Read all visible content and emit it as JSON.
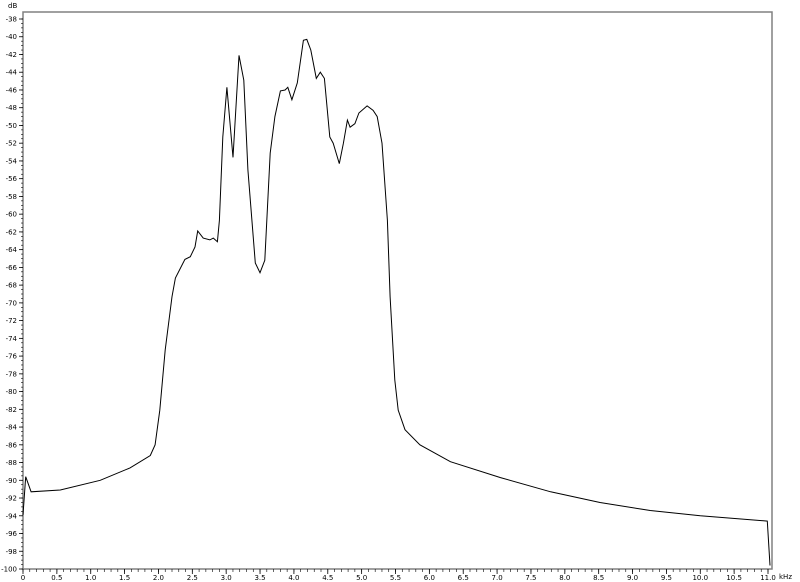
{
  "chart_data": {
    "type": "line",
    "title": "",
    "xlabel": "",
    "x_unit": "kHz",
    "ylabel": "dB",
    "xlim": [
      0,
      11
    ],
    "ylim": [
      -100,
      -38
    ],
    "grid": false,
    "x_ticks": [
      0,
      0.5,
      1.0,
      1.5,
      2.0,
      2.5,
      3.0,
      3.5,
      4.0,
      4.5,
      5.0,
      5.5,
      6.0,
      6.5,
      7.0,
      7.5,
      8.0,
      8.5,
      9.0,
      9.5,
      10.0,
      10.5,
      11.0
    ],
    "x_tick_labels": [
      "0",
      "0.5",
      "1.0",
      "1.5",
      "2.0",
      "2.5",
      "3.0",
      "3.5",
      "4.0",
      "4.5",
      "5.0",
      "5.5",
      "6.0",
      "6.5",
      "7.0",
      "7.5",
      "8.0",
      "8.5",
      "9.0",
      "9.5",
      "10.0",
      "10.5",
      "11.0"
    ],
    "y_ticks": [
      -38,
      -40,
      -42,
      -44,
      -46,
      -48,
      -50,
      -52,
      -54,
      -56,
      -58,
      -60,
      -62,
      -64,
      -66,
      -68,
      -70,
      -72,
      -74,
      -76,
      -78,
      -80,
      -82,
      -84,
      -86,
      -88,
      -90,
      -92,
      -94,
      -96,
      -98,
      -100
    ],
    "line_color": "#000000",
    "frame_color": "#808080",
    "series": [
      {
        "x": [
          0,
          0.04,
          0.12,
          0.55,
          1.14,
          1.58,
          1.88,
          1.95,
          2.02,
          2.1,
          2.2,
          2.25,
          2.39,
          2.47,
          2.54,
          2.58,
          2.66,
          2.76,
          2.81,
          2.87,
          2.9,
          2.95,
          3.01,
          3.1,
          3.19,
          3.26,
          3.32,
          3.43,
          3.5,
          3.57,
          3.65,
          3.72,
          3.8,
          3.87,
          3.91,
          3.97,
          4.05,
          4.14,
          4.19,
          4.25,
          4.33,
          4.39,
          4.45,
          4.53,
          4.58,
          4.67,
          4.73,
          4.79,
          4.83,
          4.9,
          4.96,
          5.08,
          5.17,
          5.23,
          5.3,
          5.38,
          5.42,
          5.49,
          5.54,
          5.64,
          5.86,
          6.31,
          7.05,
          7.79,
          8.52,
          9.26,
          10.0,
          10.99,
          11.03
        ],
        "y": [
          -93.9,
          -89.6,
          -91.3,
          -91.1,
          -90.0,
          -88.6,
          -87.2,
          -86.0,
          -82.1,
          -75.3,
          -69.3,
          -67.2,
          -65.1,
          -64.8,
          -63.7,
          -61.9,
          -62.7,
          -62.9,
          -62.7,
          -63.1,
          -60.7,
          -51.3,
          -45.7,
          -53.6,
          -42.1,
          -44.9,
          -55.0,
          -65.5,
          -66.6,
          -65.2,
          -53.1,
          -49.0,
          -46.1,
          -46.0,
          -45.7,
          -47.1,
          -45.2,
          -40.4,
          -40.3,
          -41.5,
          -44.7,
          -44.0,
          -44.7,
          -51.3,
          -52.0,
          -54.3,
          -52.0,
          -49.4,
          -50.2,
          -49.8,
          -48.6,
          -47.8,
          -48.3,
          -49.0,
          -52.0,
          -60.7,
          -69.3,
          -78.7,
          -82.1,
          -84.3,
          -86.0,
          -87.9,
          -89.7,
          -91.3,
          -92.5,
          -93.4,
          -94.0,
          -94.6,
          -99.6
        ]
      }
    ]
  }
}
